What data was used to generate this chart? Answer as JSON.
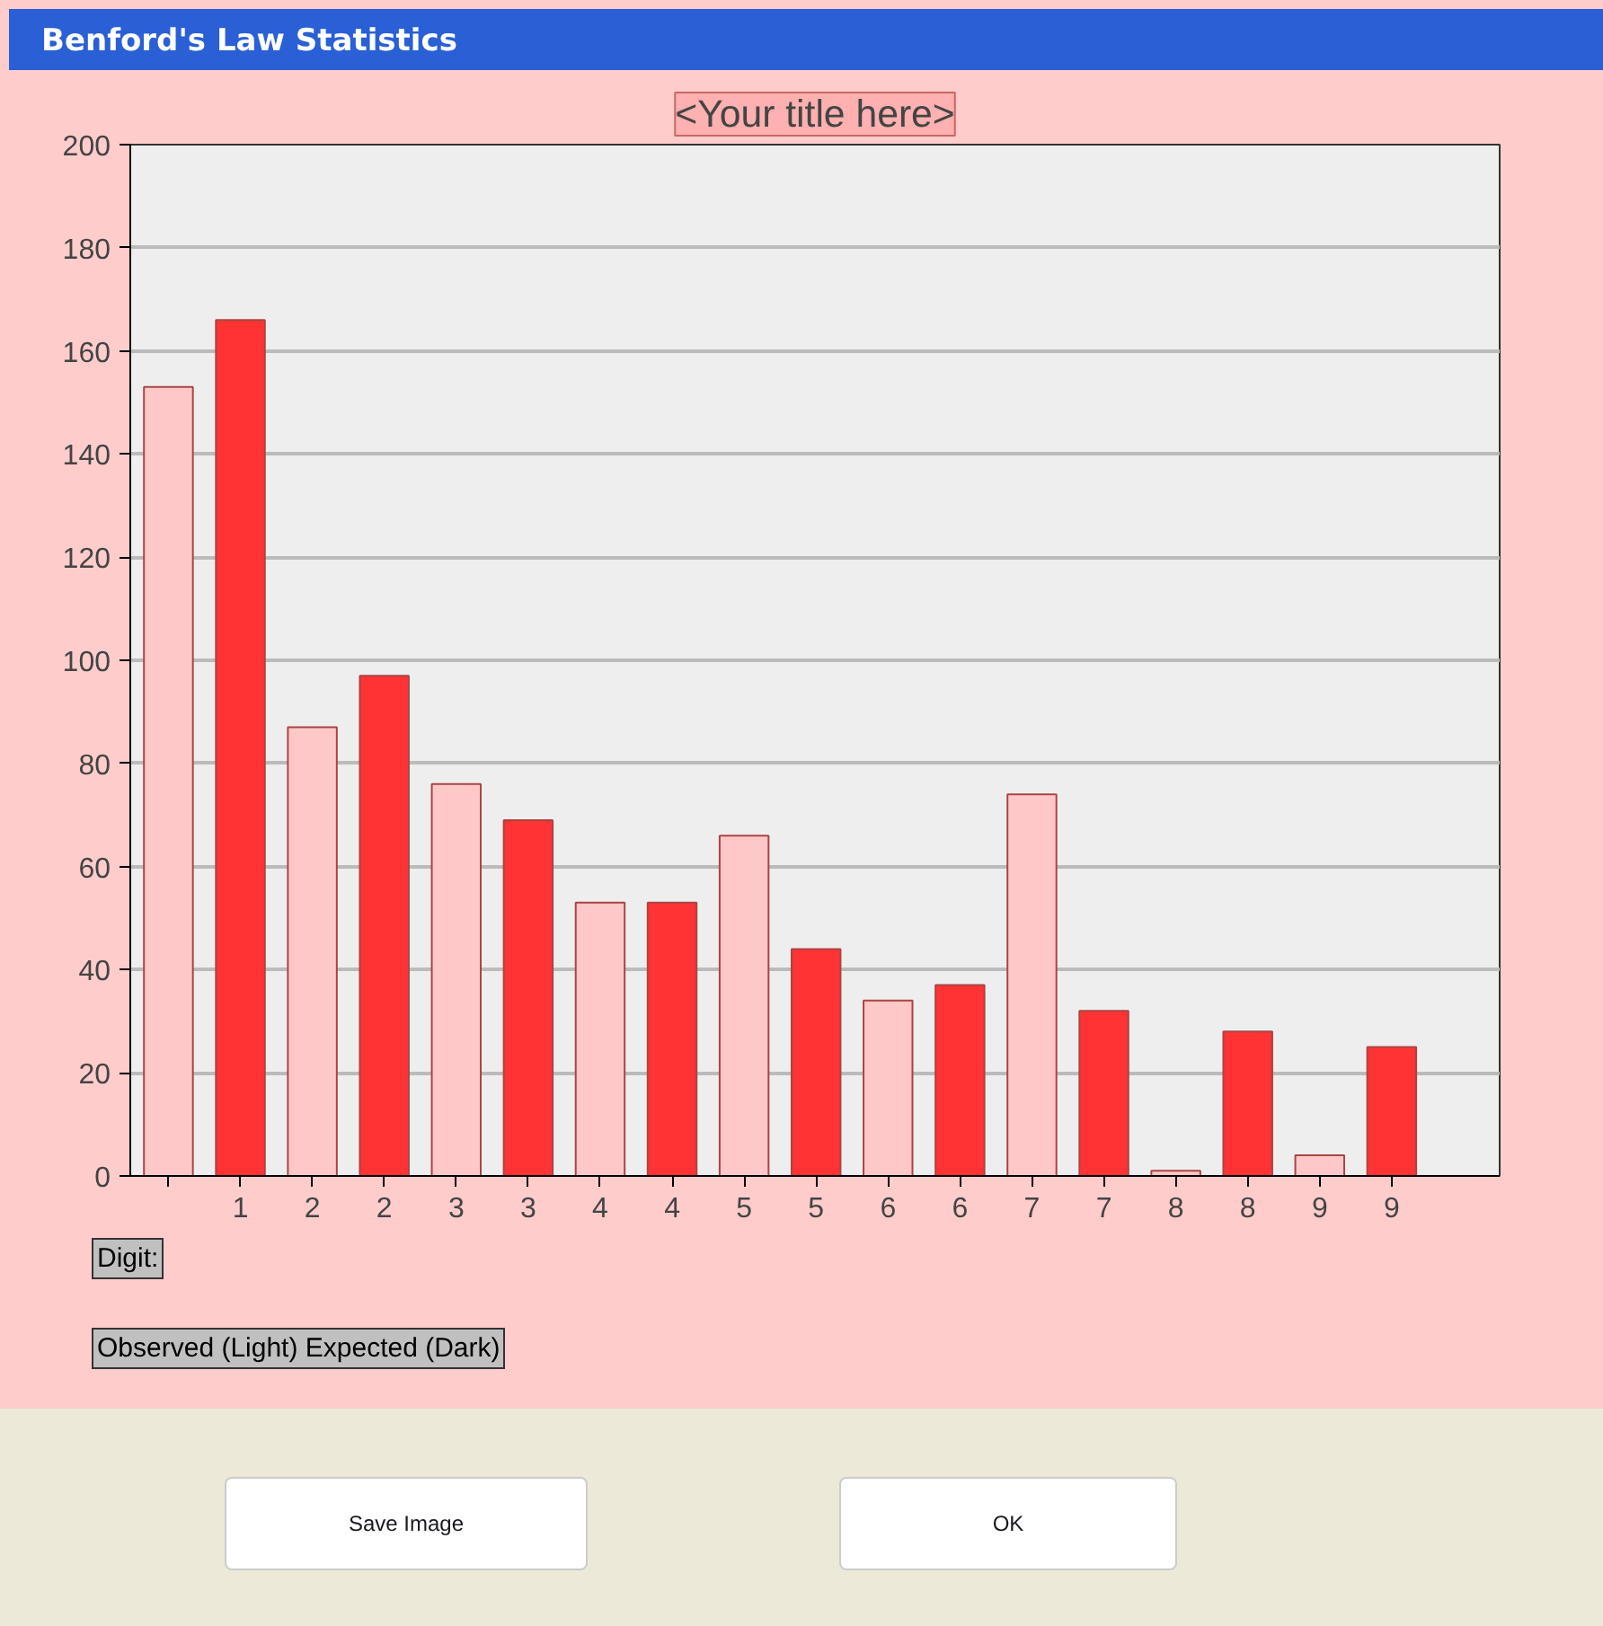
{
  "chart_data": {
    "type": "bar",
    "title": "<Your title here>",
    "xlabel": "Digit:",
    "categories": [
      null,
      "1",
      "2",
      "2",
      "3",
      "3",
      "4",
      "4",
      "5",
      "5",
      "6",
      "6",
      "7",
      "7",
      "8",
      "8",
      "9",
      "9"
    ],
    "values": [
      153,
      166,
      87,
      97,
      76,
      69,
      53,
      53,
      66,
      44,
      34,
      37,
      74,
      32,
      1,
      28,
      4,
      25
    ],
    "colors": [
      "#ffc8c8",
      "#ff3333",
      "#ffc8c8",
      "#ff3333",
      "#ffc8c8",
      "#ff3333",
      "#ffc8c8",
      "#ff3333",
      "#ffc8c8",
      "#ff3333",
      "#ffc8c8",
      "#ff3333",
      "#ffc8c8",
      "#ff3333",
      "#ffc8c8",
      "#ff3333",
      "#ffc8c8",
      "#ff3333"
    ],
    "ylim": [
      0,
      200
    ],
    "yticks": [
      0,
      20,
      40,
      60,
      80,
      100,
      120,
      140,
      160,
      180,
      200
    ],
    "grid": "y",
    "annotations": [
      "Benford's Law Statistics",
      "Observed (Light) Expected (Dark)",
      "Save Image",
      "OK"
    ]
  }
}
